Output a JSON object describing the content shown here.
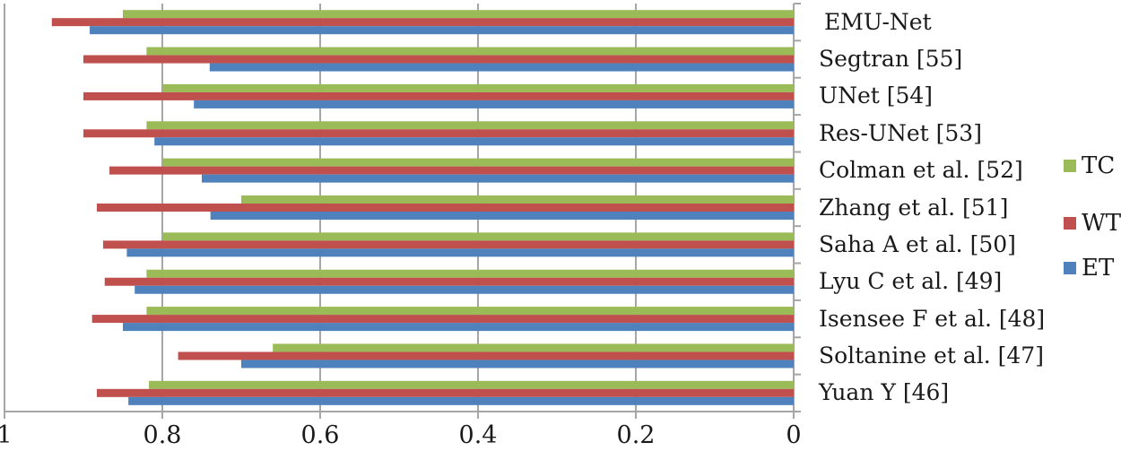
{
  "chart_data": {
    "type": "bar",
    "orientation": "horizontal",
    "x_reversed": true,
    "title": "",
    "xlabel": "",
    "ylabel": "",
    "xlim": [
      0,
      1
    ],
    "x_ticks": [
      "1",
      "0.8",
      "0.6",
      "0.4",
      "0.2",
      "0"
    ],
    "x_tick_values": [
      1,
      0.8,
      0.6,
      0.4,
      0.2,
      0
    ],
    "grid": true,
    "legend_position": "right",
    "categories": [
      "EMU-Net",
      "Segtran [55]",
      "UNet [54]",
      "Res-UNet [53]",
      "Colman et al. [52]",
      "Zhang et al. [51]",
      "Saha A et al. [50]",
      "Lyu C et al. [49]",
      "Isensee F et al. [48]",
      "Soltanine et al. [47]",
      "Yuan Y [46]"
    ],
    "series": [
      {
        "name": "TC",
        "color": "#9bbb59",
        "values": [
          0.85,
          0.82,
          0.8,
          0.82,
          0.8,
          0.7,
          0.8,
          0.82,
          0.82,
          0.66,
          0.817
        ]
      },
      {
        "name": "WT",
        "color": "#c0504d",
        "values": [
          0.94,
          0.9,
          0.9,
          0.9,
          0.867,
          0.883,
          0.875,
          0.873,
          0.889,
          0.78,
          0.883
        ]
      },
      {
        "name": "ET",
        "color": "#4f81bd",
        "values": [
          0.892,
          0.74,
          0.76,
          0.81,
          0.75,
          0.739,
          0.845,
          0.835,
          0.85,
          0.7,
          0.843
        ]
      }
    ]
  },
  "legend": [
    {
      "label": "TC",
      "color": "#9bbb59"
    },
    {
      "label": "WT",
      "color": "#c0504d"
    },
    {
      "label": "ET",
      "color": "#4f81bd"
    }
  ]
}
